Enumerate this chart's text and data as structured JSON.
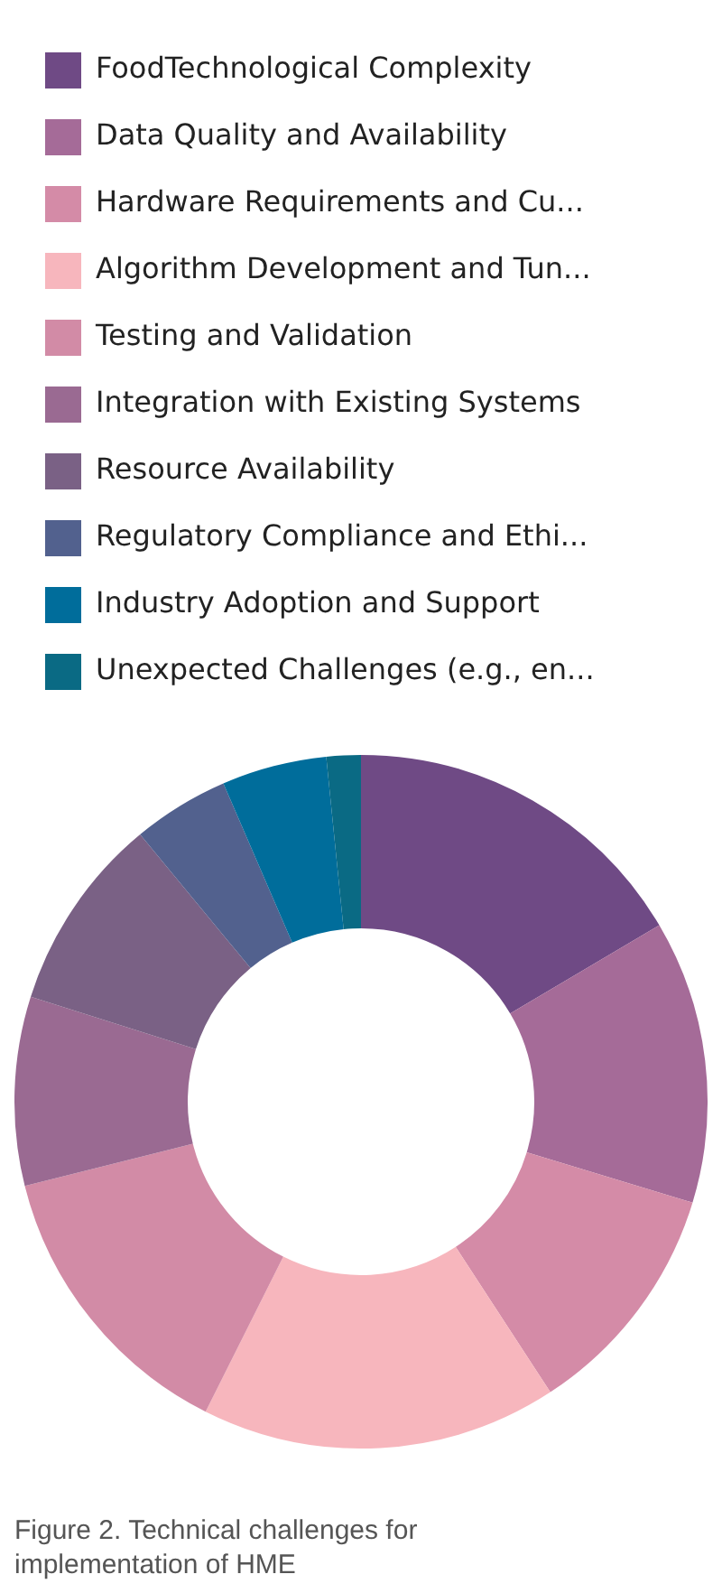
{
  "chart_data": {
    "type": "donut",
    "categories": [
      "FoodTechnological Complexity",
      "Data Quality and Availability",
      "Hardware Requirements and Cu...",
      "Algorithm Development and Tun...",
      "Testing and Validation",
      "Integration with Existing Systems",
      "Resource Availability",
      "Regulatory Compliance and Ethi...",
      "Industry Adoption and Support",
      "Unexpected Challenges (e.g., en..."
    ],
    "values": [
      16.5,
      13.2,
      11.1,
      16.6,
      13.7,
      8.8,
      9.1,
      4.5,
      4.9,
      1.6
    ],
    "colors": [
      "#6f4a85",
      "#a56b98",
      "#d48ba7",
      "#f7b6bd",
      "#d28ba6",
      "#9a6a92",
      "#7a6185",
      "#52618e",
      "#006d9b",
      "#0a6a84"
    ],
    "legend": "top",
    "annotations": [
      "Figure 2. Technical challenges for implementation of HME"
    ]
  }
}
